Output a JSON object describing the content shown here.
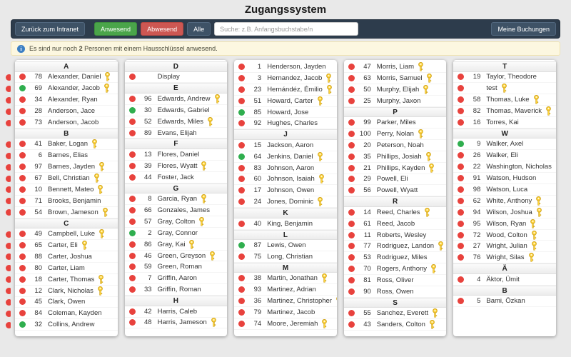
{
  "title": "Zugangssystem",
  "toolbar": {
    "back_button": "Zurück zum Intranet",
    "present_button": "Anwesend",
    "absent_button": "Abwesend",
    "all_button": "Alle",
    "search_placeholder": "Suche: z.B. Anfangsbuchstabe/n",
    "bookings_button": "Meine Buchungen"
  },
  "info_bar": {
    "icon": "info-icon",
    "text_before": "Es sind nur noch",
    "count": "2",
    "text_after": "Personen mit einem Hausschlüssel anwesend."
  },
  "colors": {
    "present": "#2fae4e",
    "absent": "#e8423d",
    "key": "#ffd43b",
    "toolbar_bg": "#2d3c4c",
    "button_green": "#4aa54a",
    "button_red": "#cd5752",
    "button_slate": "#3e5266",
    "info_bg": "#fcf7e0"
  },
  "columns": [
    {
      "items": [
        {
          "type": "header",
          "label": "A"
        },
        {
          "type": "person",
          "status": "absent",
          "num": "78",
          "name": "Alexander, Daniel",
          "key": true
        },
        {
          "type": "person",
          "status": "present",
          "num": "69",
          "name": "Alexander, Jacob",
          "key": true
        },
        {
          "type": "person",
          "status": "absent",
          "num": "34",
          "name": "Alexander, Ryan",
          "key": false
        },
        {
          "type": "person",
          "status": "absent",
          "num": "28",
          "name": "Anderson, Jace",
          "key": false
        },
        {
          "type": "person",
          "status": "absent",
          "num": "73",
          "name": "Anderson, Jacob",
          "key": false
        },
        {
          "type": "header",
          "label": "B"
        },
        {
          "type": "person",
          "status": "absent",
          "num": "41",
          "name": "Baker, Logan",
          "key": true
        },
        {
          "type": "person",
          "status": "absent",
          "num": "6",
          "name": "Barnes, Elias",
          "key": false
        },
        {
          "type": "person",
          "status": "absent",
          "num": "97",
          "name": "Barnes, Jayden",
          "key": true
        },
        {
          "type": "person",
          "status": "absent",
          "num": "67",
          "name": "Bell, Christian",
          "key": true
        },
        {
          "type": "person",
          "status": "absent",
          "num": "10",
          "name": "Bennett, Mateo",
          "key": true
        },
        {
          "type": "person",
          "status": "absent",
          "num": "71",
          "name": "Brooks, Benjamin",
          "key": false
        },
        {
          "type": "person",
          "status": "absent",
          "num": "54",
          "name": "Brown, Jameson",
          "key": true
        },
        {
          "type": "header",
          "label": "C"
        },
        {
          "type": "person",
          "status": "absent",
          "num": "49",
          "name": "Campbell, Luke",
          "key": true
        },
        {
          "type": "person",
          "status": "absent",
          "num": "65",
          "name": "Carter, Eli",
          "key": true
        },
        {
          "type": "person",
          "status": "absent",
          "num": "88",
          "name": "Carter, Joshua",
          "key": false
        },
        {
          "type": "person",
          "status": "absent",
          "num": "80",
          "name": "Carter, Liam",
          "key": false
        },
        {
          "type": "person",
          "status": "absent",
          "num": "18",
          "name": "Carter, Thomas",
          "key": true
        },
        {
          "type": "person",
          "status": "absent",
          "num": "12",
          "name": "Clark, Nicholas",
          "key": true
        },
        {
          "type": "person",
          "status": "absent",
          "num": "45",
          "name": "Clark, Owen",
          "key": false
        },
        {
          "type": "person",
          "status": "absent",
          "num": "84",
          "name": "Coleman, Kayden",
          "key": false
        },
        {
          "type": "person",
          "status": "present",
          "num": "32",
          "name": "Collins, Andrew",
          "key": false
        }
      ]
    },
    {
      "items": [
        {
          "type": "header",
          "label": "D"
        },
        {
          "type": "person",
          "status": "absent",
          "num": "",
          "name": "Display",
          "key": false
        },
        {
          "type": "header",
          "label": "E"
        },
        {
          "type": "person",
          "status": "absent",
          "num": "96",
          "name": "Edwards, Andrew",
          "key": true
        },
        {
          "type": "person",
          "status": "present",
          "num": "30",
          "name": "Edwards, Gabriel",
          "key": false
        },
        {
          "type": "person",
          "status": "absent",
          "num": "52",
          "name": "Edwards, Miles",
          "key": true
        },
        {
          "type": "person",
          "status": "absent",
          "num": "89",
          "name": "Evans, Elijah",
          "key": false
        },
        {
          "type": "header",
          "label": "F"
        },
        {
          "type": "person",
          "status": "absent",
          "num": "13",
          "name": "Flores, Daniel",
          "key": false
        },
        {
          "type": "person",
          "status": "absent",
          "num": "39",
          "name": "Flores, Wyatt",
          "key": true
        },
        {
          "type": "person",
          "status": "absent",
          "num": "44",
          "name": "Foster, Jack",
          "key": false
        },
        {
          "type": "header",
          "label": "G"
        },
        {
          "type": "person",
          "status": "absent",
          "num": "8",
          "name": "Garcia, Ryan",
          "key": true
        },
        {
          "type": "person",
          "status": "absent",
          "num": "66",
          "name": "Gonzales, James",
          "key": false
        },
        {
          "type": "person",
          "status": "absent",
          "num": "57",
          "name": "Gray, Colton",
          "key": true
        },
        {
          "type": "person",
          "status": "present",
          "num": "2",
          "name": "Gray, Connor",
          "key": false
        },
        {
          "type": "person",
          "status": "absent",
          "num": "86",
          "name": "Gray, Kai",
          "key": true
        },
        {
          "type": "person",
          "status": "absent",
          "num": "46",
          "name": "Green, Greyson",
          "key": true
        },
        {
          "type": "person",
          "status": "absent",
          "num": "59",
          "name": "Green, Roman",
          "key": false
        },
        {
          "type": "person",
          "status": "absent",
          "num": "7",
          "name": "Griffin, Aaron",
          "key": false
        },
        {
          "type": "person",
          "status": "absent",
          "num": "33",
          "name": "Griffin, Roman",
          "key": false
        },
        {
          "type": "header",
          "label": "H"
        },
        {
          "type": "person",
          "status": "absent",
          "num": "42",
          "name": "Harris, Caleb",
          "key": false
        },
        {
          "type": "person",
          "status": "absent",
          "num": "48",
          "name": "Harris, Jameson",
          "key": true
        }
      ]
    },
    {
      "items": [
        {
          "type": "person",
          "status": "absent",
          "num": "1",
          "name": "Henderson, Jayden",
          "key": false
        },
        {
          "type": "person",
          "status": "absent",
          "num": "3",
          "name": "Hernandez, Jacob",
          "key": true
        },
        {
          "type": "person",
          "status": "absent",
          "num": "23",
          "name": "Hernándéz, Émilio",
          "key": true
        },
        {
          "type": "person",
          "status": "absent",
          "num": "51",
          "name": "Howard, Carter",
          "key": true
        },
        {
          "type": "person",
          "status": "present",
          "num": "85",
          "name": "Howard, Jose",
          "key": false
        },
        {
          "type": "person",
          "status": "absent",
          "num": "92",
          "name": "Hughes, Charles",
          "key": false
        },
        {
          "type": "header",
          "label": "J"
        },
        {
          "type": "person",
          "status": "absent",
          "num": "15",
          "name": "Jackson, Aaron",
          "key": false
        },
        {
          "type": "person",
          "status": "present",
          "num": "64",
          "name": "Jenkins, Daniel",
          "key": true
        },
        {
          "type": "person",
          "status": "absent",
          "num": "83",
          "name": "Johnson, Aaron",
          "key": false
        },
        {
          "type": "person",
          "status": "absent",
          "num": "60",
          "name": "Johnson, Isaiah",
          "key": true
        },
        {
          "type": "person",
          "status": "absent",
          "num": "17",
          "name": "Johnson, Owen",
          "key": false
        },
        {
          "type": "person",
          "status": "absent",
          "num": "24",
          "name": "Jones, Dominic",
          "key": true
        },
        {
          "type": "header",
          "label": "K"
        },
        {
          "type": "person",
          "status": "absent",
          "num": "40",
          "name": "King, Benjamin",
          "key": false
        },
        {
          "type": "header",
          "label": "L"
        },
        {
          "type": "person",
          "status": "present",
          "num": "87",
          "name": "Lewis, Owen",
          "key": false
        },
        {
          "type": "person",
          "status": "absent",
          "num": "75",
          "name": "Long, Christian",
          "key": false
        },
        {
          "type": "header",
          "label": "M"
        },
        {
          "type": "person",
          "status": "absent",
          "num": "38",
          "name": "Martin, Jonathan",
          "key": true
        },
        {
          "type": "person",
          "status": "absent",
          "num": "93",
          "name": "Martinez, Adrian",
          "key": false
        },
        {
          "type": "person",
          "status": "absent",
          "num": "36",
          "name": "Martinez, Christopher",
          "key": true
        },
        {
          "type": "person",
          "status": "absent",
          "num": "79",
          "name": "Martinez, Jacob",
          "key": false
        },
        {
          "type": "person",
          "status": "absent",
          "num": "74",
          "name": "Moore, Jeremiah",
          "key": true
        }
      ]
    },
    {
      "items": [
        {
          "type": "person",
          "status": "absent",
          "num": "47",
          "name": "Morris, Liam",
          "key": true
        },
        {
          "type": "person",
          "status": "absent",
          "num": "63",
          "name": "Morris, Samuel",
          "key": true
        },
        {
          "type": "person",
          "status": "absent",
          "num": "50",
          "name": "Murphy, Elijah",
          "key": true
        },
        {
          "type": "person",
          "status": "absent",
          "num": "25",
          "name": "Murphy, Jaxon",
          "key": false
        },
        {
          "type": "header",
          "label": "P"
        },
        {
          "type": "person",
          "status": "absent",
          "num": "99",
          "name": "Parker, Miles",
          "key": false
        },
        {
          "type": "person",
          "status": "absent",
          "num": "100",
          "name": "Perry, Nolan",
          "key": true
        },
        {
          "type": "person",
          "status": "absent",
          "num": "20",
          "name": "Peterson, Noah",
          "key": false
        },
        {
          "type": "person",
          "status": "absent",
          "num": "35",
          "name": "Phillips, Josiah",
          "key": true
        },
        {
          "type": "person",
          "status": "absent",
          "num": "21",
          "name": "Phillips, Kayden",
          "key": true
        },
        {
          "type": "person",
          "status": "absent",
          "num": "29",
          "name": "Powell, Eli",
          "key": false
        },
        {
          "type": "person",
          "status": "absent",
          "num": "56",
          "name": "Powell, Wyatt",
          "key": false
        },
        {
          "type": "header",
          "label": "R"
        },
        {
          "type": "person",
          "status": "absent",
          "num": "14",
          "name": "Reed, Charles",
          "key": true
        },
        {
          "type": "person",
          "status": "absent",
          "num": "61",
          "name": "Reed, Jacob",
          "key": false
        },
        {
          "type": "person",
          "status": "absent",
          "num": "11",
          "name": "Roberts, Wesley",
          "key": false
        },
        {
          "type": "person",
          "status": "absent",
          "num": "77",
          "name": "Rodriguez, Landon",
          "key": true
        },
        {
          "type": "person",
          "status": "absent",
          "num": "53",
          "name": "Rodriguez, Miles",
          "key": false
        },
        {
          "type": "person",
          "status": "absent",
          "num": "70",
          "name": "Rogers, Anthony",
          "key": true
        },
        {
          "type": "person",
          "status": "absent",
          "num": "81",
          "name": "Ross, Oliver",
          "key": false
        },
        {
          "type": "person",
          "status": "absent",
          "num": "90",
          "name": "Ross, Owen",
          "key": false
        },
        {
          "type": "header",
          "label": "S"
        },
        {
          "type": "person",
          "status": "absent",
          "num": "55",
          "name": "Sanchez, Everett",
          "key": true
        },
        {
          "type": "person",
          "status": "absent",
          "num": "43",
          "name": "Sanders, Colton",
          "key": true
        }
      ]
    },
    {
      "items": [
        {
          "type": "header",
          "label": "T"
        },
        {
          "type": "person",
          "status": "absent",
          "num": "19",
          "name": "Taylor, Theodore",
          "key": false
        },
        {
          "type": "person",
          "status": "absent",
          "num": "",
          "name": "test",
          "key": true
        },
        {
          "type": "person",
          "status": "absent",
          "num": "58",
          "name": "Thomas, Luke",
          "key": true
        },
        {
          "type": "person",
          "status": "absent",
          "num": "82",
          "name": "Thomas, Maverick",
          "key": true
        },
        {
          "type": "person",
          "status": "absent",
          "num": "16",
          "name": "Torres, Kai",
          "key": false
        },
        {
          "type": "header",
          "label": "W"
        },
        {
          "type": "person",
          "status": "present",
          "num": "9",
          "name": "Walker, Axel",
          "key": false
        },
        {
          "type": "person",
          "status": "absent",
          "num": "26",
          "name": "Walker, Eli",
          "key": false
        },
        {
          "type": "person",
          "status": "absent",
          "num": "22",
          "name": "Washington, Nicholas",
          "key": false
        },
        {
          "type": "person",
          "status": "absent",
          "num": "91",
          "name": "Watson, Hudson",
          "key": false
        },
        {
          "type": "person",
          "status": "absent",
          "num": "98",
          "name": "Watson, Luca",
          "key": false
        },
        {
          "type": "person",
          "status": "absent",
          "num": "62",
          "name": "White, Anthony",
          "key": true
        },
        {
          "type": "person",
          "status": "absent",
          "num": "94",
          "name": "Wilson, Joshua",
          "key": true
        },
        {
          "type": "person",
          "status": "absent",
          "num": "95",
          "name": "Wilson, Ryan",
          "key": true
        },
        {
          "type": "person",
          "status": "absent",
          "num": "72",
          "name": "Wood, Colton",
          "key": true
        },
        {
          "type": "person",
          "status": "absent",
          "num": "27",
          "name": "Wright, Julian",
          "key": true
        },
        {
          "type": "person",
          "status": "absent",
          "num": "76",
          "name": "Wright, Silas",
          "key": true
        },
        {
          "type": "header",
          "label": "Ä"
        },
        {
          "type": "person",
          "status": "absent",
          "num": "4",
          "name": "Äktor, Ümit",
          "key": false
        },
        {
          "type": "header",
          "label": "B"
        },
        {
          "type": "person",
          "status": "absent",
          "num": "5",
          "name": "Bami, Özkan",
          "key": false
        }
      ]
    }
  ]
}
